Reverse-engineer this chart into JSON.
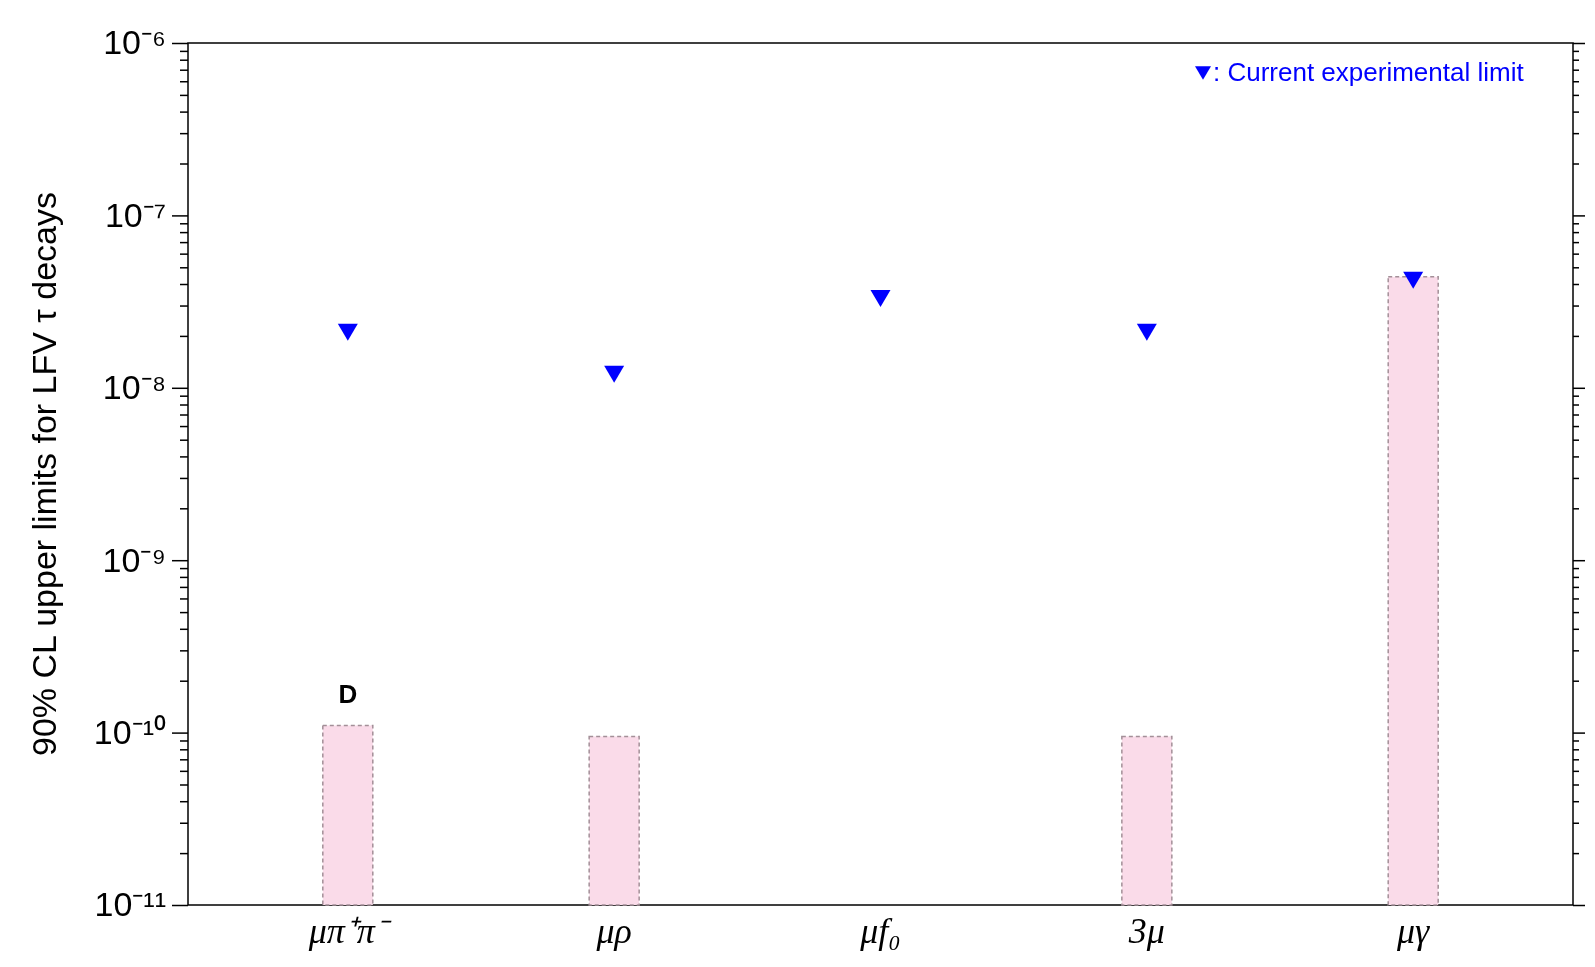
{
  "chart_data": {
    "type": "bar",
    "ylabel": "90% CL upper limits for LFV τ decays",
    "categories": [
      "μπ⁺π⁻",
      "μρ",
      "μf₀",
      "3μ",
      "μγ"
    ],
    "log": true,
    "ylim": [
      1e-11,
      1e-06
    ],
    "yticks": [
      {
        "value": 1e-11,
        "label": "10⁻¹¹"
      },
      {
        "value": 2e-11,
        "label": null
      },
      {
        "value": 3e-11,
        "label": null
      },
      {
        "value": 4e-11,
        "label": null
      },
      {
        "value": 5e-11,
        "label": null
      },
      {
        "value": 6e-11,
        "label": null
      },
      {
        "value": 7e-11,
        "label": null
      },
      {
        "value": 8e-11,
        "label": null
      },
      {
        "value": 9e-11,
        "label": null
      },
      {
        "value": 1e-10,
        "label": "10⁻¹⁰"
      },
      {
        "value": 2e-10,
        "label": null
      },
      {
        "value": 3e-10,
        "label": null
      },
      {
        "value": 4e-10,
        "label": null
      },
      {
        "value": 5e-10,
        "label": null
      },
      {
        "value": 6e-10,
        "label": null
      },
      {
        "value": 7e-10,
        "label": null
      },
      {
        "value": 8e-10,
        "label": null
      },
      {
        "value": 9e-10,
        "label": null
      },
      {
        "value": 1e-09,
        "label": "10⁻⁹"
      },
      {
        "value": 2e-09,
        "label": null
      },
      {
        "value": 3e-09,
        "label": null
      },
      {
        "value": 4e-09,
        "label": null
      },
      {
        "value": 5e-09,
        "label": null
      },
      {
        "value": 6e-09,
        "label": null
      },
      {
        "value": 7e-09,
        "label": null
      },
      {
        "value": 8e-09,
        "label": null
      },
      {
        "value": 9e-09,
        "label": null
      },
      {
        "value": 1e-08,
        "label": "10⁻⁸"
      },
      {
        "value": 2e-08,
        "label": null
      },
      {
        "value": 3e-08,
        "label": null
      },
      {
        "value": 4e-08,
        "label": null
      },
      {
        "value": 5e-08,
        "label": null
      },
      {
        "value": 6e-08,
        "label": null
      },
      {
        "value": 7e-08,
        "label": null
      },
      {
        "value": 8e-08,
        "label": null
      },
      {
        "value": 9e-08,
        "label": null
      },
      {
        "value": 1e-07,
        "label": "10⁻⁷"
      },
      {
        "value": 2e-07,
        "label": null
      },
      {
        "value": 3e-07,
        "label": null
      },
      {
        "value": 4e-07,
        "label": null
      },
      {
        "value": 5e-07,
        "label": null
      },
      {
        "value": 6e-07,
        "label": null
      },
      {
        "value": 7e-07,
        "label": null
      },
      {
        "value": 8e-07,
        "label": null
      },
      {
        "value": 9e-07,
        "label": null
      },
      {
        "value": 1e-06,
        "label": "10⁻⁶"
      }
    ],
    "legend": "top right",
    "marker": "triangle",
    "series": [
      {
        "color": "#fadbe9",
        "values": [
          1.1e-10,
          9.5e-11,
          null,
          9.5e-11,
          4.4e-08
        ]
      },
      {
        "type": "scatter",
        "name": ": Current experimental limit",
        "color": "#0000ff",
        "values": [
          2.1e-08,
          1.2e-08,
          3.3e-08,
          2.1e-08,
          4.2e-08
        ]
      }
    ],
    "annotations": [
      {
        "text": "D",
        "x": "μπ⁺π⁻",
        "y": 1.1e-10
      }
    ]
  }
}
